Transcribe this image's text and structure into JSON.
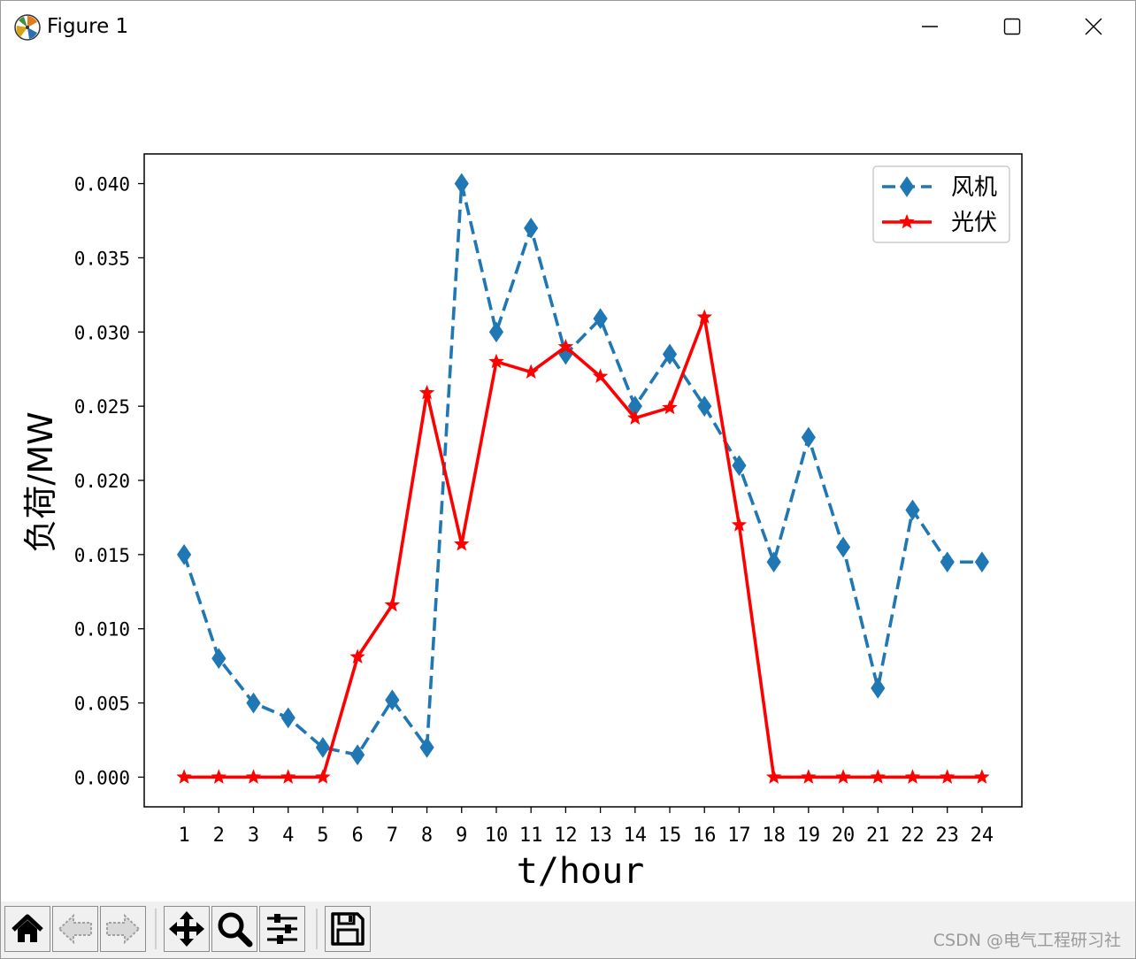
{
  "window": {
    "title": "Figure 1",
    "icon": "matplotlib-logo-icon",
    "controls": [
      "minimize-icon",
      "maximize-icon",
      "close-icon"
    ]
  },
  "toolbar": {
    "buttons": [
      {
        "name": "home",
        "icon": "home-icon"
      },
      {
        "name": "back",
        "icon": "back-arrow-icon"
      },
      {
        "name": "forward",
        "icon": "forward-arrow-icon"
      },
      {
        "name": "pan",
        "icon": "move-icon"
      },
      {
        "name": "zoom",
        "icon": "magnifier-icon"
      },
      {
        "name": "configure",
        "icon": "sliders-icon"
      },
      {
        "name": "save",
        "icon": "floppy-disk-icon"
      }
    ]
  },
  "watermark": "CSDN @电气工程研习社",
  "chart_data": {
    "type": "line",
    "title": "",
    "xlabel": "t/hour",
    "ylabel": "负荷/MW",
    "x": [
      1,
      2,
      3,
      4,
      5,
      6,
      7,
      8,
      9,
      10,
      11,
      12,
      13,
      14,
      15,
      16,
      17,
      18,
      19,
      20,
      21,
      22,
      23,
      24
    ],
    "xtick_labels": [
      "1",
      "2",
      "3",
      "4",
      "5",
      "6",
      "7",
      "8",
      "9",
      "10",
      "11",
      "12",
      "13",
      "14",
      "15",
      "16",
      "17",
      "18",
      "19",
      "20",
      "21",
      "22",
      "23",
      "24"
    ],
    "yticks": [
      0.0,
      0.005,
      0.01,
      0.015,
      0.02,
      0.025,
      0.03,
      0.035,
      0.04
    ],
    "ytick_labels": [
      "0.000",
      "0.005",
      "0.010",
      "0.015",
      "0.020",
      "0.025",
      "0.030",
      "0.035",
      "0.040"
    ],
    "xlim": [
      -0.15,
      25.15
    ],
    "ylim": [
      -0.002,
      0.042
    ],
    "grid": false,
    "legend_position": "top-right",
    "series": [
      {
        "name": "风机",
        "color": "#1f77b4",
        "linestyle": "dashed",
        "marker": "diamond",
        "values": [
          0.015,
          0.008,
          0.005,
          0.004,
          0.002,
          0.0015,
          0.0052,
          0.002,
          0.04,
          0.03,
          0.037,
          0.0285,
          0.0309,
          0.025,
          0.0285,
          0.025,
          0.021,
          0.0145,
          0.0229,
          0.0155,
          0.006,
          0.018,
          0.0145,
          0.0145
        ]
      },
      {
        "name": "光伏",
        "color": "#ff0000",
        "linestyle": "solid",
        "marker": "star",
        "values": [
          0.0,
          0.0,
          0.0,
          0.0,
          0.0,
          0.0081,
          0.0116,
          0.0259,
          0.0157,
          0.028,
          0.0273,
          0.029,
          0.027,
          0.0242,
          0.0249,
          0.031,
          0.017,
          0.0,
          0.0,
          0.0,
          0.0,
          0.0,
          0.0,
          0.0
        ]
      }
    ]
  }
}
